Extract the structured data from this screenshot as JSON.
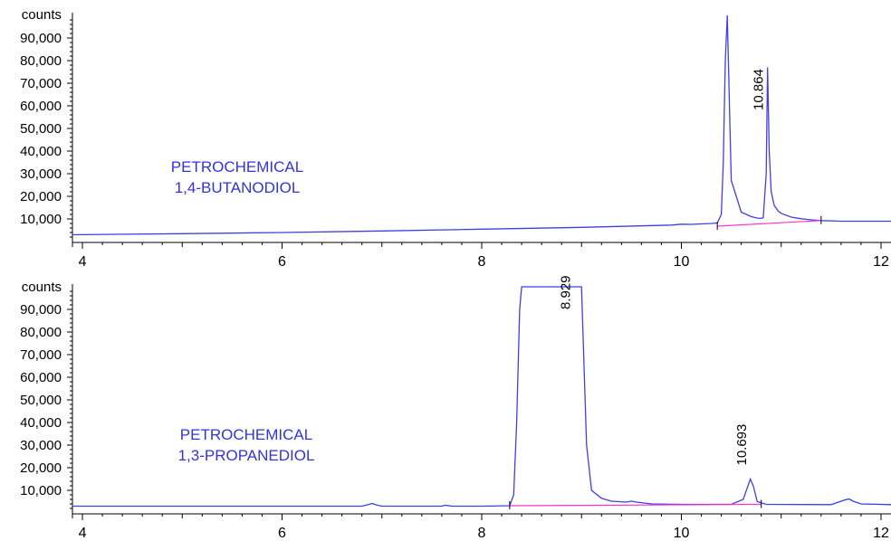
{
  "chart_data": [
    {
      "type": "line",
      "y_unit_label": "counts",
      "annotation": [
        "PETROCHEMICAL",
        "1,4-BUTANODIOL"
      ],
      "xlim": [
        3.9,
        12.1
      ],
      "ylim": [
        0,
        100000
      ],
      "x_ticks": [
        4,
        6,
        8,
        10,
        12
      ],
      "x_tick_labels": [
        "4",
        "6",
        "8",
        "10",
        "12"
      ],
      "y_ticks": [
        10000,
        20000,
        30000,
        40000,
        50000,
        60000,
        70000,
        80000,
        90000
      ],
      "y_tick_labels": [
        "10,000",
        "20,000",
        "30,000",
        "40,000",
        "50,000",
        "60,000",
        "70,000",
        "80,000",
        "90,000"
      ],
      "peak_labels": [
        {
          "x": 10.864,
          "y": 58000,
          "text": "10.864"
        }
      ],
      "colors": {
        "signal": "#4040e0",
        "baseline": "#ff33cc",
        "label": "#3333dd",
        "axis": "#000000"
      },
      "series": [
        {
          "x": [
            3.9,
            5.0,
            6.0,
            7.0,
            8.0,
            9.0,
            9.9,
            10.0,
            10.1,
            10.2,
            10.3,
            10.36,
            10.4,
            10.42,
            10.44,
            10.46,
            10.5,
            10.6,
            10.7,
            10.78,
            10.82,
            10.85,
            10.864,
            10.88,
            10.9,
            10.93,
            10.97,
            11.0,
            11.1,
            11.2,
            11.3,
            11.4,
            11.6,
            12.1
          ],
          "y": [
            3000,
            3500,
            4000,
            4700,
            5500,
            6300,
            7300,
            7700,
            7600,
            7800,
            8000,
            8200,
            12000,
            35000,
            80000,
            100000,
            27000,
            13000,
            11000,
            10200,
            10500,
            30000,
            77000,
            40000,
            22000,
            16000,
            13500,
            12500,
            10800,
            10100,
            9600,
            9300,
            9000,
            9000
          ]
        }
      ],
      "baseline": {
        "x": [
          10.36,
          11.4
        ],
        "y": [
          6800,
          9300
        ]
      }
    },
    {
      "type": "line",
      "y_unit_label": "counts",
      "annotation": [
        "PETROCHEMICAL",
        "1,3-PROPANEDIOL"
      ],
      "xlim": [
        3.9,
        12.1
      ],
      "ylim": [
        0,
        100000
      ],
      "x_ticks": [
        4,
        6,
        8,
        10,
        12
      ],
      "x_tick_labels": [
        "4",
        "6",
        "8",
        "10",
        "12"
      ],
      "y_ticks": [
        10000,
        20000,
        30000,
        40000,
        50000,
        60000,
        70000,
        80000,
        90000
      ],
      "y_tick_labels": [
        "10,000",
        "20,000",
        "30,000",
        "40,000",
        "50,000",
        "60,000",
        "70,000",
        "80,000",
        "90,000"
      ],
      "peak_labels": [
        {
          "x": 8.929,
          "y": 90000,
          "text": "8.929"
        },
        {
          "x": 10.693,
          "y": 21000,
          "text": "10.693"
        }
      ],
      "colors": {
        "signal": "#4040e0",
        "baseline": "#ff33cc",
        "label": "#3333dd",
        "axis": "#000000"
      },
      "series": [
        {
          "x": [
            3.9,
            5.0,
            6.0,
            6.8,
            6.88,
            6.9,
            6.95,
            7.0,
            7.6,
            7.63,
            7.66,
            7.7,
            8.0,
            8.28,
            8.32,
            8.35,
            8.38,
            8.4,
            8.42,
            8.5,
            8.6,
            8.7,
            8.8,
            8.9,
            8.95,
            8.98,
            9.0,
            9.05,
            9.1,
            9.2,
            9.3,
            9.45,
            9.5,
            9.55,
            9.7,
            10.0,
            10.5,
            10.62,
            10.66,
            10.69,
            10.72,
            10.76,
            10.85,
            11.5,
            11.62,
            11.68,
            11.72,
            11.8,
            12.1
          ],
          "y": [
            3000,
            3000,
            3000,
            3000,
            3900,
            4200,
            3500,
            3000,
            3000,
            3400,
            3300,
            3000,
            3000,
            3200,
            8000,
            40000,
            90000,
            100000,
            100000,
            100000,
            100000,
            100000,
            100000,
            100000,
            100000,
            100000,
            100000,
            30000,
            10000,
            6500,
            5200,
            4800,
            5200,
            4800,
            4000,
            3800,
            3800,
            6000,
            11000,
            15000,
            12000,
            5000,
            3800,
            3700,
            5500,
            6200,
            5200,
            4000,
            3700
          ]
        }
      ],
      "baseline": {
        "x": [
          8.28,
          10.8
        ],
        "y": [
          3200,
          3800
        ]
      }
    }
  ]
}
